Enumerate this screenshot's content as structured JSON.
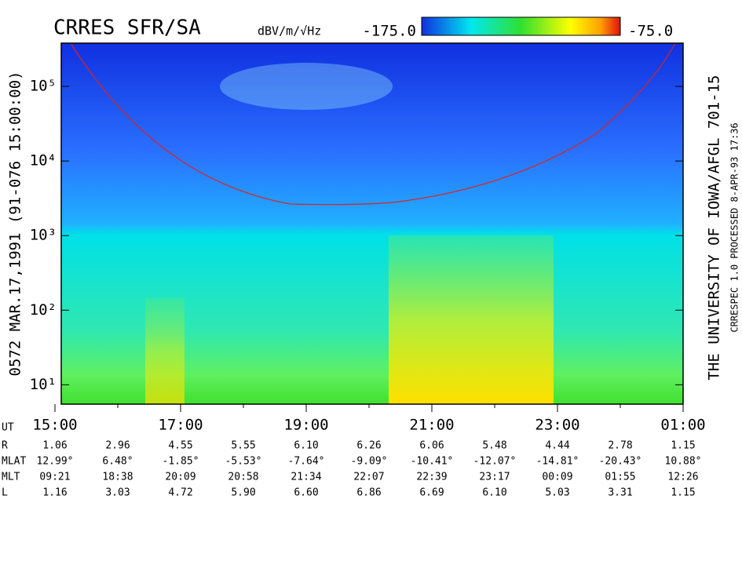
{
  "chart_data": {
    "type": "spectrogram",
    "title": "CRRES SFR/SA",
    "colorbar": {
      "unit": "dBV/m/√Hz",
      "min": {
        "value": -175,
        "label": "-175.0"
      },
      "max": {
        "value": -75,
        "label": "-75.0"
      }
    },
    "left_label": "0572  MAR.17,1991  (91-076 15:00:00)",
    "right_label": "THE UNIVERSITY OF IOWA/AFGL 701-15",
    "right_sublabel": "CRRESPEC 1.0  PROCESSED  8-APR-93  17:36",
    "log_y": true,
    "ylim": [
      5.5,
      380000
    ],
    "yticks": [
      {
        "value": 10,
        "label": "10¹"
      },
      {
        "value": 100,
        "label": "10²"
      },
      {
        "value": 1000,
        "label": "10³"
      },
      {
        "value": 10000,
        "label": "10⁴"
      },
      {
        "value": 100000,
        "label": "10⁵"
      }
    ],
    "xlim": [
      15,
      25
    ],
    "xticks": [
      {
        "value": 15,
        "label": "15:00"
      },
      {
        "value": 17,
        "label": "17:00"
      },
      {
        "value": 19,
        "label": "19:00"
      },
      {
        "value": 21,
        "label": "21:00"
      },
      {
        "value": 23,
        "label": "23:00"
      },
      {
        "value": 25,
        "label": "01:00"
      }
    ],
    "ephemeris_x": [
      15,
      16,
      17,
      18,
      19,
      20,
      21,
      22,
      23,
      24,
      25
    ],
    "ephemeris": [
      {
        "name": "UT",
        "values": []
      },
      {
        "name": "R",
        "values": [
          "1.06",
          "2.96",
          "4.55",
          "5.55",
          "6.10",
          "6.26",
          "6.06",
          "5.48",
          "4.44",
          "2.78",
          "1.15"
        ]
      },
      {
        "name": "MLAT",
        "values": [
          "12.99°",
          "6.48°",
          "-1.85°",
          "-5.53°",
          "-7.64°",
          "-9.09°",
          "-10.41°",
          "-12.07°",
          "-14.81°",
          "-20.43°",
          "10.88°"
        ]
      },
      {
        "name": "MLT",
        "values": [
          "09:21",
          "18:38",
          "20:09",
          "20:58",
          "21:34",
          "22:07",
          "22:39",
          "23:17",
          "00:09",
          "01:55",
          "12:26"
        ]
      },
      {
        "name": "L",
        "values": [
          "1.16",
          "3.03",
          "4.72",
          "5.90",
          "6.60",
          "6.86",
          "6.69",
          "6.10",
          "5.03",
          "3.31",
          "1.15"
        ]
      }
    ]
  }
}
